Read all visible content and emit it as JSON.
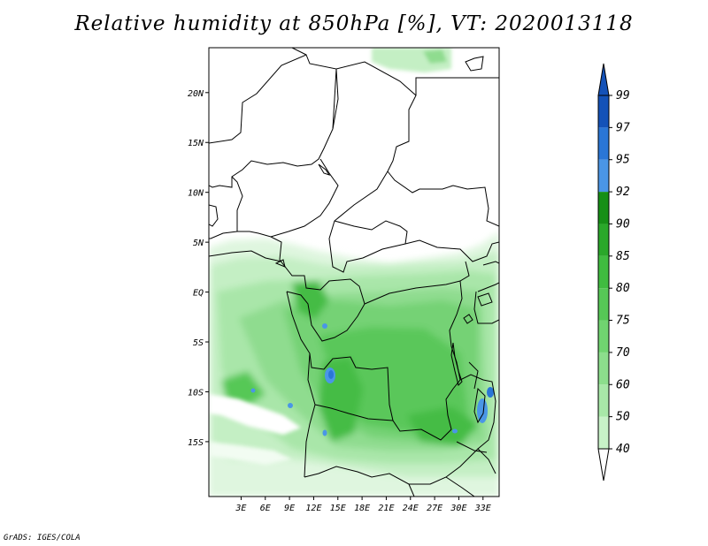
{
  "title": "Relative humidity at 850hPa [%], VT: 2020013118",
  "credit": "GrADS: IGES/COLA",
  "map": {
    "lon_range": [
      -1,
      35
    ],
    "lat_range": [
      -20.5,
      24.5
    ],
    "lon_ticks": [
      {
        "value": 3,
        "label": "3E"
      },
      {
        "value": 6,
        "label": "6E"
      },
      {
        "value": 9,
        "label": "9E"
      },
      {
        "value": 12,
        "label": "12E"
      },
      {
        "value": 15,
        "label": "15E"
      },
      {
        "value": 18,
        "label": "18E"
      },
      {
        "value": 21,
        "label": "21E"
      },
      {
        "value": 24,
        "label": "24E"
      },
      {
        "value": 27,
        "label": "27E"
      },
      {
        "value": 30,
        "label": "30E"
      },
      {
        "value": 33,
        "label": "33E"
      }
    ],
    "lat_ticks": [
      {
        "value": 20,
        "label": "20N"
      },
      {
        "value": 15,
        "label": "15N"
      },
      {
        "value": 10,
        "label": "10N"
      },
      {
        "value": 5,
        "label": "5N"
      },
      {
        "value": 0,
        "label": "EQ"
      },
      {
        "value": -5,
        "label": "5S"
      },
      {
        "value": -10,
        "label": "10S"
      },
      {
        "value": -15,
        "label": "15S"
      }
    ]
  },
  "colorbar": {
    "levels": [
      "40",
      "50",
      "60",
      "70",
      "75",
      "80",
      "85",
      "90",
      "92",
      "95",
      "97",
      "99"
    ],
    "colors": [
      "#e6fae6",
      "#c8f2c8",
      "#a8e8a8",
      "#8cde8c",
      "#70d470",
      "#56c856",
      "#40bc40",
      "#2aa82a",
      "#168f16",
      "#4a96e6",
      "#2a76d6",
      "#1452b8"
    ],
    "under_color": "#ffffff",
    "over_color": "#1452b8"
  },
  "colors": {
    "ocean": "#ffffff",
    "border": "#000000"
  }
}
